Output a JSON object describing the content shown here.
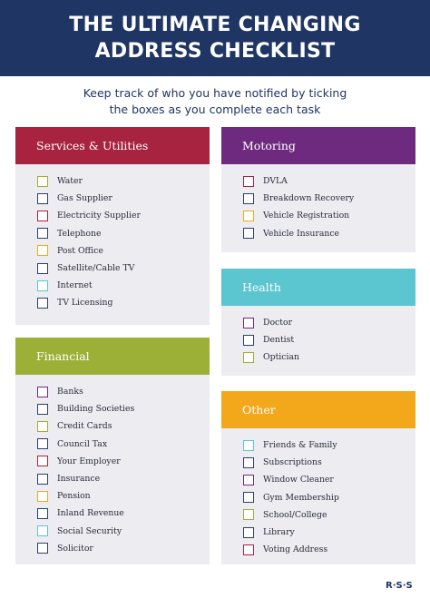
{
  "header": {
    "title": [
      "THE ULTIMATE CHANGING",
      "ADDRESS CHECKLIST"
    ],
    "subtitle": [
      "Keep track of who you have notified by ticking",
      "the boxes as you complete each task"
    ]
  },
  "sections": [
    {
      "title": "Services & Utilities",
      "items": [
        "Water",
        "Gas Supplier",
        "Electricity Supplier",
        "Telephone",
        "Post Office",
        "Satellite/Cable TV",
        "Internet",
        "TV Licensing"
      ]
    },
    {
      "title": "Financial",
      "items": [
        "Banks",
        "Building Societies",
        "Credit Cards",
        "Council Tax",
        "Your Employer",
        "Insurance",
        "Pension",
        "Inland Revenue",
        "Social Security",
        "Solicitor"
      ]
    },
    {
      "title": "Motoring",
      "items": [
        "DVLA",
        "Breakdown Recovery",
        "Vehicle Registration",
        "Vehicle Insurance"
      ]
    },
    {
      "title": "Health",
      "items": [
        "Doctor",
        "Dentist",
        "Optician"
      ]
    },
    {
      "title": "Other",
      "items": [
        "Friends & Family",
        "Subscriptions",
        "Window Cleaner",
        "Gym Membership",
        "School/College",
        "Library",
        "Voting Address"
      ]
    }
  ],
  "logo": "R·S·S"
}
